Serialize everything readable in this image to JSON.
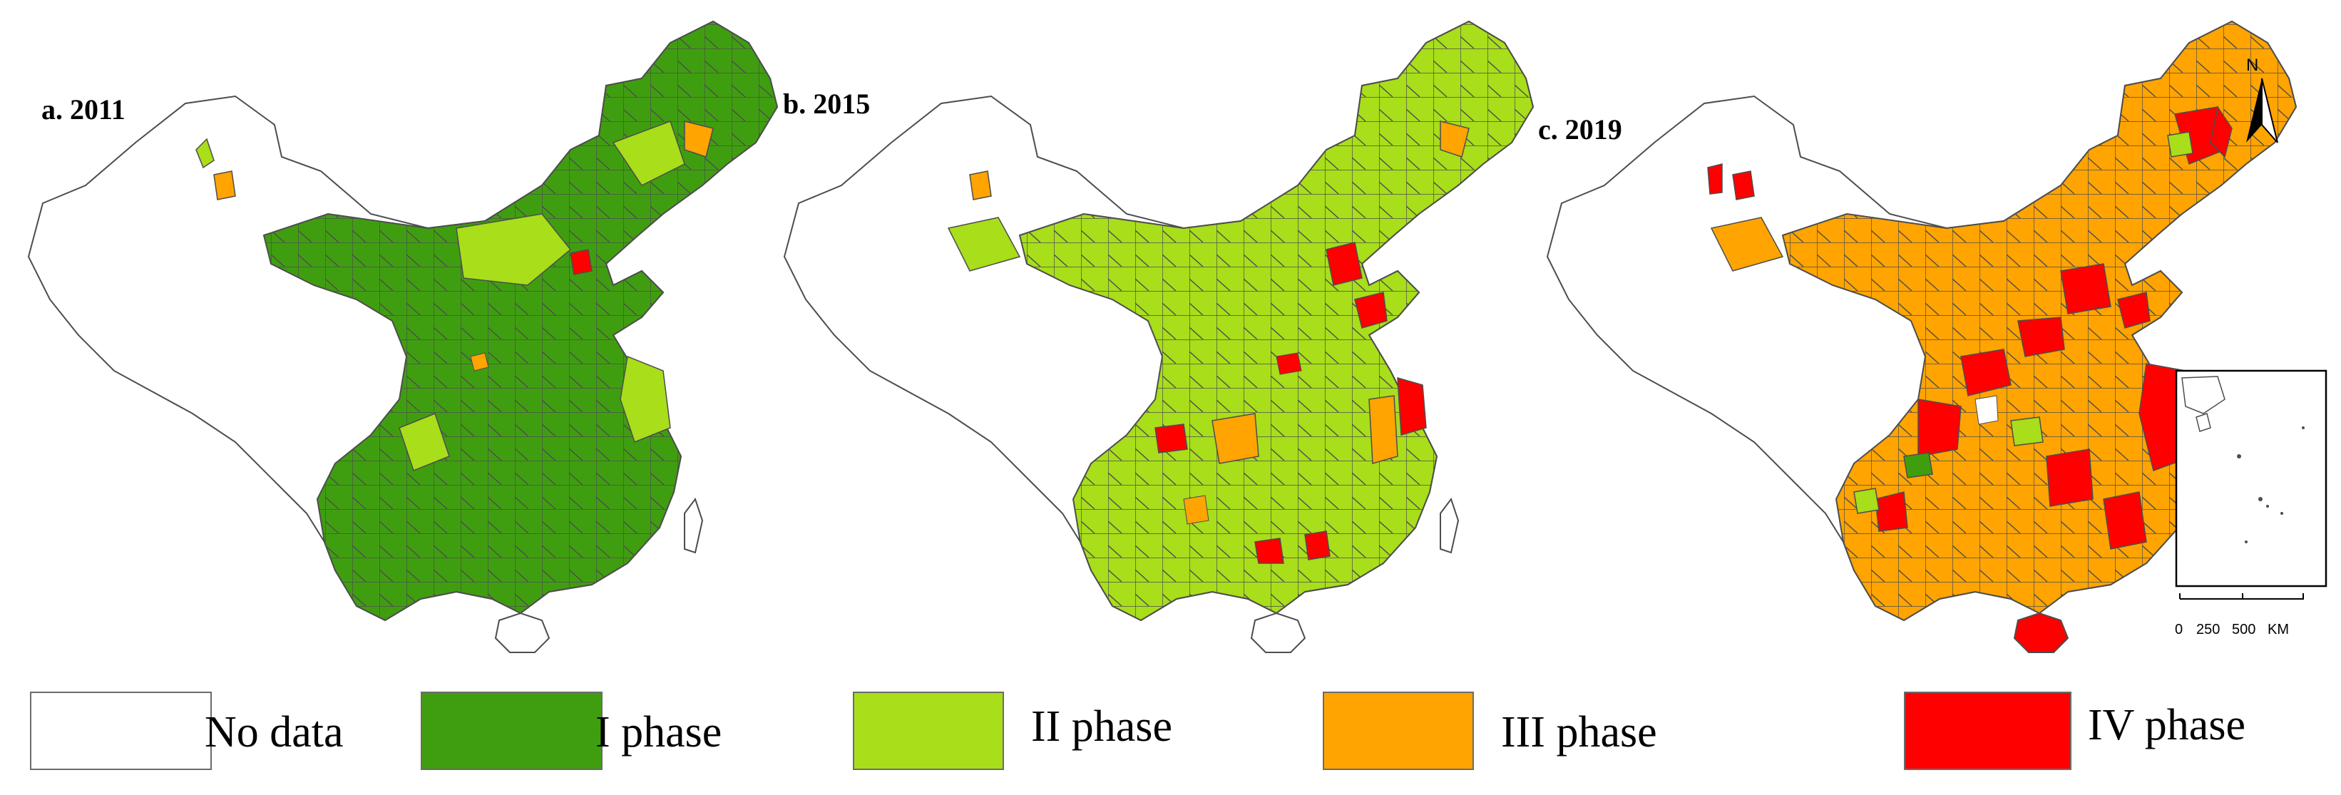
{
  "panels": [
    {
      "label": "a. 2011"
    },
    {
      "label": "b. 2015"
    },
    {
      "label": "c. 2019"
    }
  ],
  "legend": [
    {
      "label": "No data",
      "color": "#ffffff"
    },
    {
      "label": "I phase",
      "color": "#3f9e10"
    },
    {
      "label": "II phase",
      "color": "#a8de1a"
    },
    {
      "label": "III phase",
      "color": "#ffa400"
    },
    {
      "label": "IV phase",
      "color": "#ff0000"
    }
  ],
  "north_arrow": {
    "label": "N"
  },
  "scale_bar": {
    "ticks": [
      "0",
      "250",
      "500"
    ],
    "unit": "KM"
  }
}
